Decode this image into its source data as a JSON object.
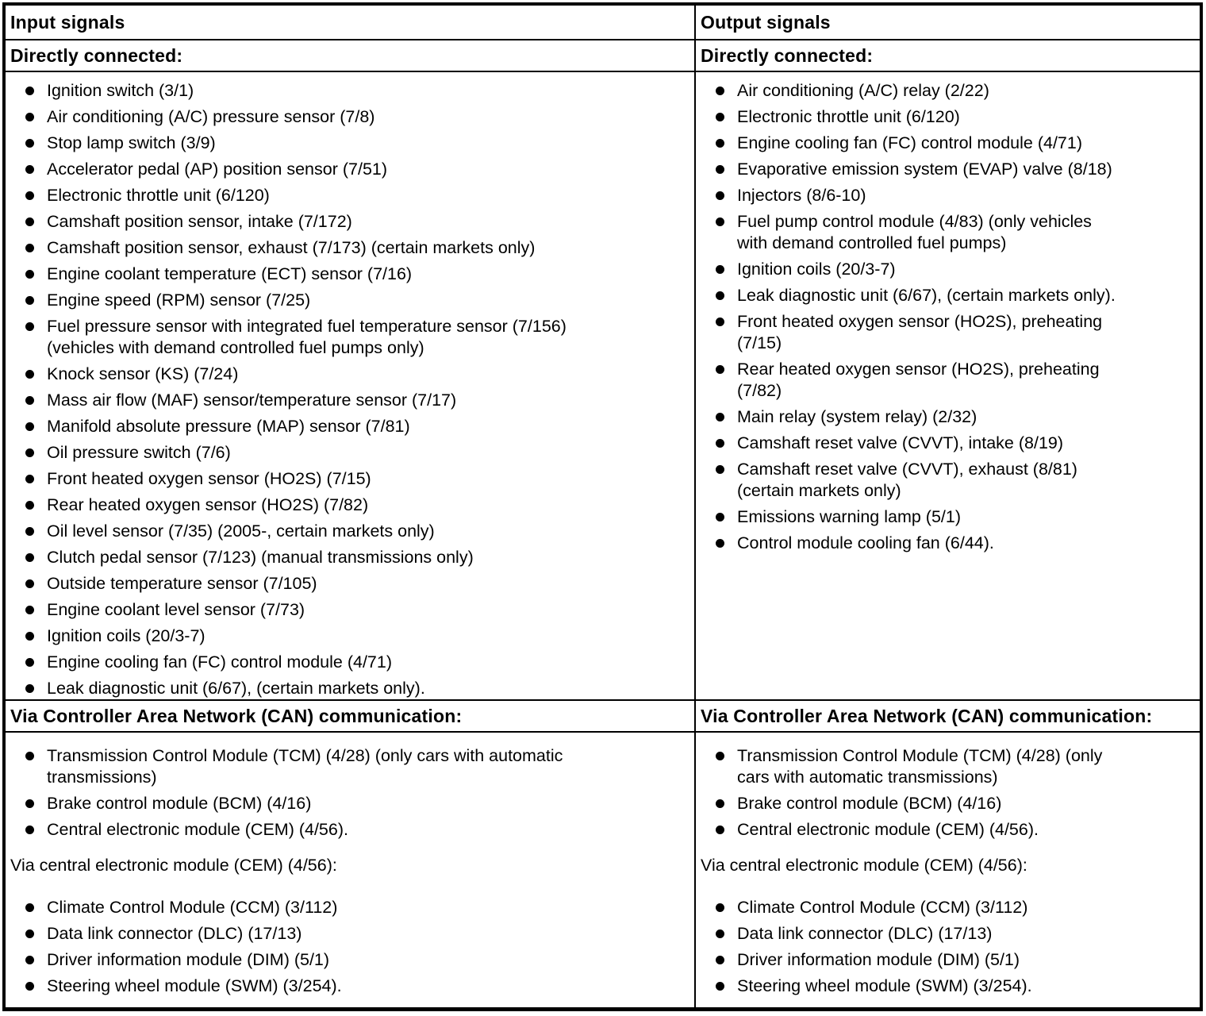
{
  "colors": {
    "border": "#000000",
    "text": "#000000",
    "background": "#ffffff"
  },
  "left": {
    "header": "Input signals",
    "directly_connected": {
      "title": "Directly connected:",
      "items": [
        "Ignition switch (3/1)",
        "Air conditioning (A/C) pressure sensor (7/8)",
        "Stop lamp switch (3/9)",
        "Accelerator pedal (AP) position sensor (7/51)",
        "Electronic throttle unit (6/120)",
        "Camshaft position sensor, intake (7/172)",
        "Camshaft position sensor, exhaust (7/173) (certain markets only)",
        "Engine coolant temperature (ECT) sensor (7/16)",
        "Engine speed (RPM) sensor (7/25)",
        "Fuel pressure sensor with integrated fuel temperature sensor (7/156)\n(vehicles with demand controlled fuel pumps only)",
        "Knock sensor (KS) (7/24)",
        "Mass air flow (MAF) sensor/temperature sensor (7/17)",
        "Manifold absolute pressure (MAP) sensor (7/81)",
        "Oil pressure switch (7/6)",
        "Front heated oxygen sensor (HO2S) (7/15)",
        "Rear heated oxygen sensor (HO2S) (7/82)",
        "Oil level sensor (7/35) (2005-, certain markets only)",
        "Clutch pedal sensor (7/123) (manual transmissions only)",
        "Outside temperature sensor (7/105)",
        "Engine coolant level sensor (7/73)",
        "Ignition coils (20/3-7)",
        "Engine cooling fan (FC) control module (4/71)",
        "Leak diagnostic unit (6/67), (certain markets only)."
      ]
    },
    "can": {
      "title": "Via Controller Area Network (CAN) communication:",
      "items": [
        "Transmission Control Module (TCM) (4/28) (only cars with automatic\ntransmissions)",
        "Brake control module (BCM) (4/16)",
        "Central electronic module (CEM) (4/56)."
      ]
    },
    "via_cem": {
      "title": "Via central electronic module (CEM) (4/56):",
      "items": [
        "Climate Control Module (CCM) (3/112)",
        "Data link connector (DLC) (17/13)",
        "Driver information module (DIM) (5/1)",
        "Steering wheel module (SWM) (3/254)."
      ]
    }
  },
  "right": {
    "header": "Output signals",
    "directly_connected": {
      "title": "Directly connected:",
      "items": [
        "Air conditioning (A/C) relay (2/22)",
        "Electronic throttle unit (6/120)",
        "Engine cooling fan (FC) control module (4/71)",
        "Evaporative emission system (EVAP) valve (8/18)",
        "Injectors (8/6-10)",
        "Fuel pump control module (4/83) (only vehicles\nwith demand controlled fuel pumps)",
        "Ignition coils (20/3-7)",
        "Leak diagnostic unit (6/67), (certain markets only).",
        "Front heated oxygen sensor (HO2S), preheating\n(7/15)",
        "Rear heated oxygen sensor (HO2S), preheating\n(7/82)",
        "Main relay (system relay) (2/32)",
        "Camshaft reset valve (CVVT), intake (8/19)",
        "Camshaft reset valve (CVVT), exhaust (8/81)\n(certain markets only)",
        "Emissions warning lamp (5/1)",
        "Control module cooling fan (6/44)."
      ]
    },
    "can": {
      "title": "Via Controller Area Network (CAN) communication:",
      "items": [
        "Transmission Control Module (TCM) (4/28) (only\ncars with automatic transmissions)",
        "Brake control module (BCM) (4/16)",
        "Central electronic module (CEM) (4/56)."
      ]
    },
    "via_cem": {
      "title": "Via central electronic module (CEM) (4/56):",
      "items": [
        "Climate Control Module (CCM) (3/112)",
        "Data link connector (DLC) (17/13)",
        "Driver information module (DIM) (5/1)",
        "Steering wheel module (SWM) (3/254)."
      ]
    }
  }
}
